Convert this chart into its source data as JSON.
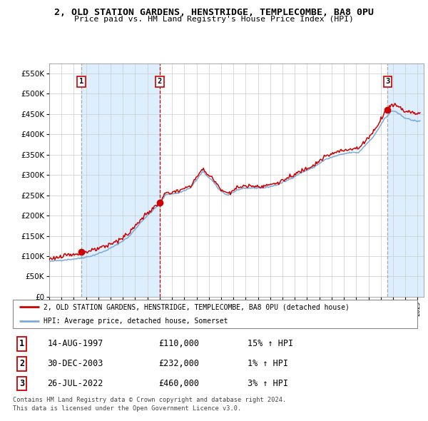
{
  "title": "2, OLD STATION GARDENS, HENSTRIDGE, TEMPLECOMBE, BA8 0PU",
  "subtitle": "Price paid vs. HM Land Registry's House Price Index (HPI)",
  "legend_line1": "2, OLD STATION GARDENS, HENSTRIDGE, TEMPLECOMBE, BA8 0PU (detached house)",
  "legend_line2": "HPI: Average price, detached house, Somerset",
  "footer1": "Contains HM Land Registry data © Crown copyright and database right 2024.",
  "footer2": "This data is licensed under the Open Government Licence v3.0.",
  "transactions": [
    {
      "label": "1",
      "date": "14-AUG-1997",
      "price": 110000,
      "hpi_pct": "15%",
      "direction": "↑"
    },
    {
      "label": "2",
      "date": "30-DEC-2003",
      "price": 232000,
      "hpi_pct": "1%",
      "direction": "↑"
    },
    {
      "label": "3",
      "date": "26-JUL-2022",
      "price": 460000,
      "hpi_pct": "3%",
      "direction": "↑"
    }
  ],
  "transaction_dates_decimal": [
    1997.617,
    2003.997,
    2022.558
  ],
  "transaction_prices": [
    110000,
    232000,
    460000
  ],
  "color_red": "#cc0000",
  "color_blue": "#7aaadd",
  "color_bg_shaded": "#ddeeff",
  "color_grid": "#cccccc",
  "yticks": [
    0,
    50000,
    100000,
    150000,
    200000,
    250000,
    300000,
    350000,
    400000,
    450000,
    500000,
    550000
  ],
  "xlim_start": 1995.0,
  "xlim_end": 2025.5
}
